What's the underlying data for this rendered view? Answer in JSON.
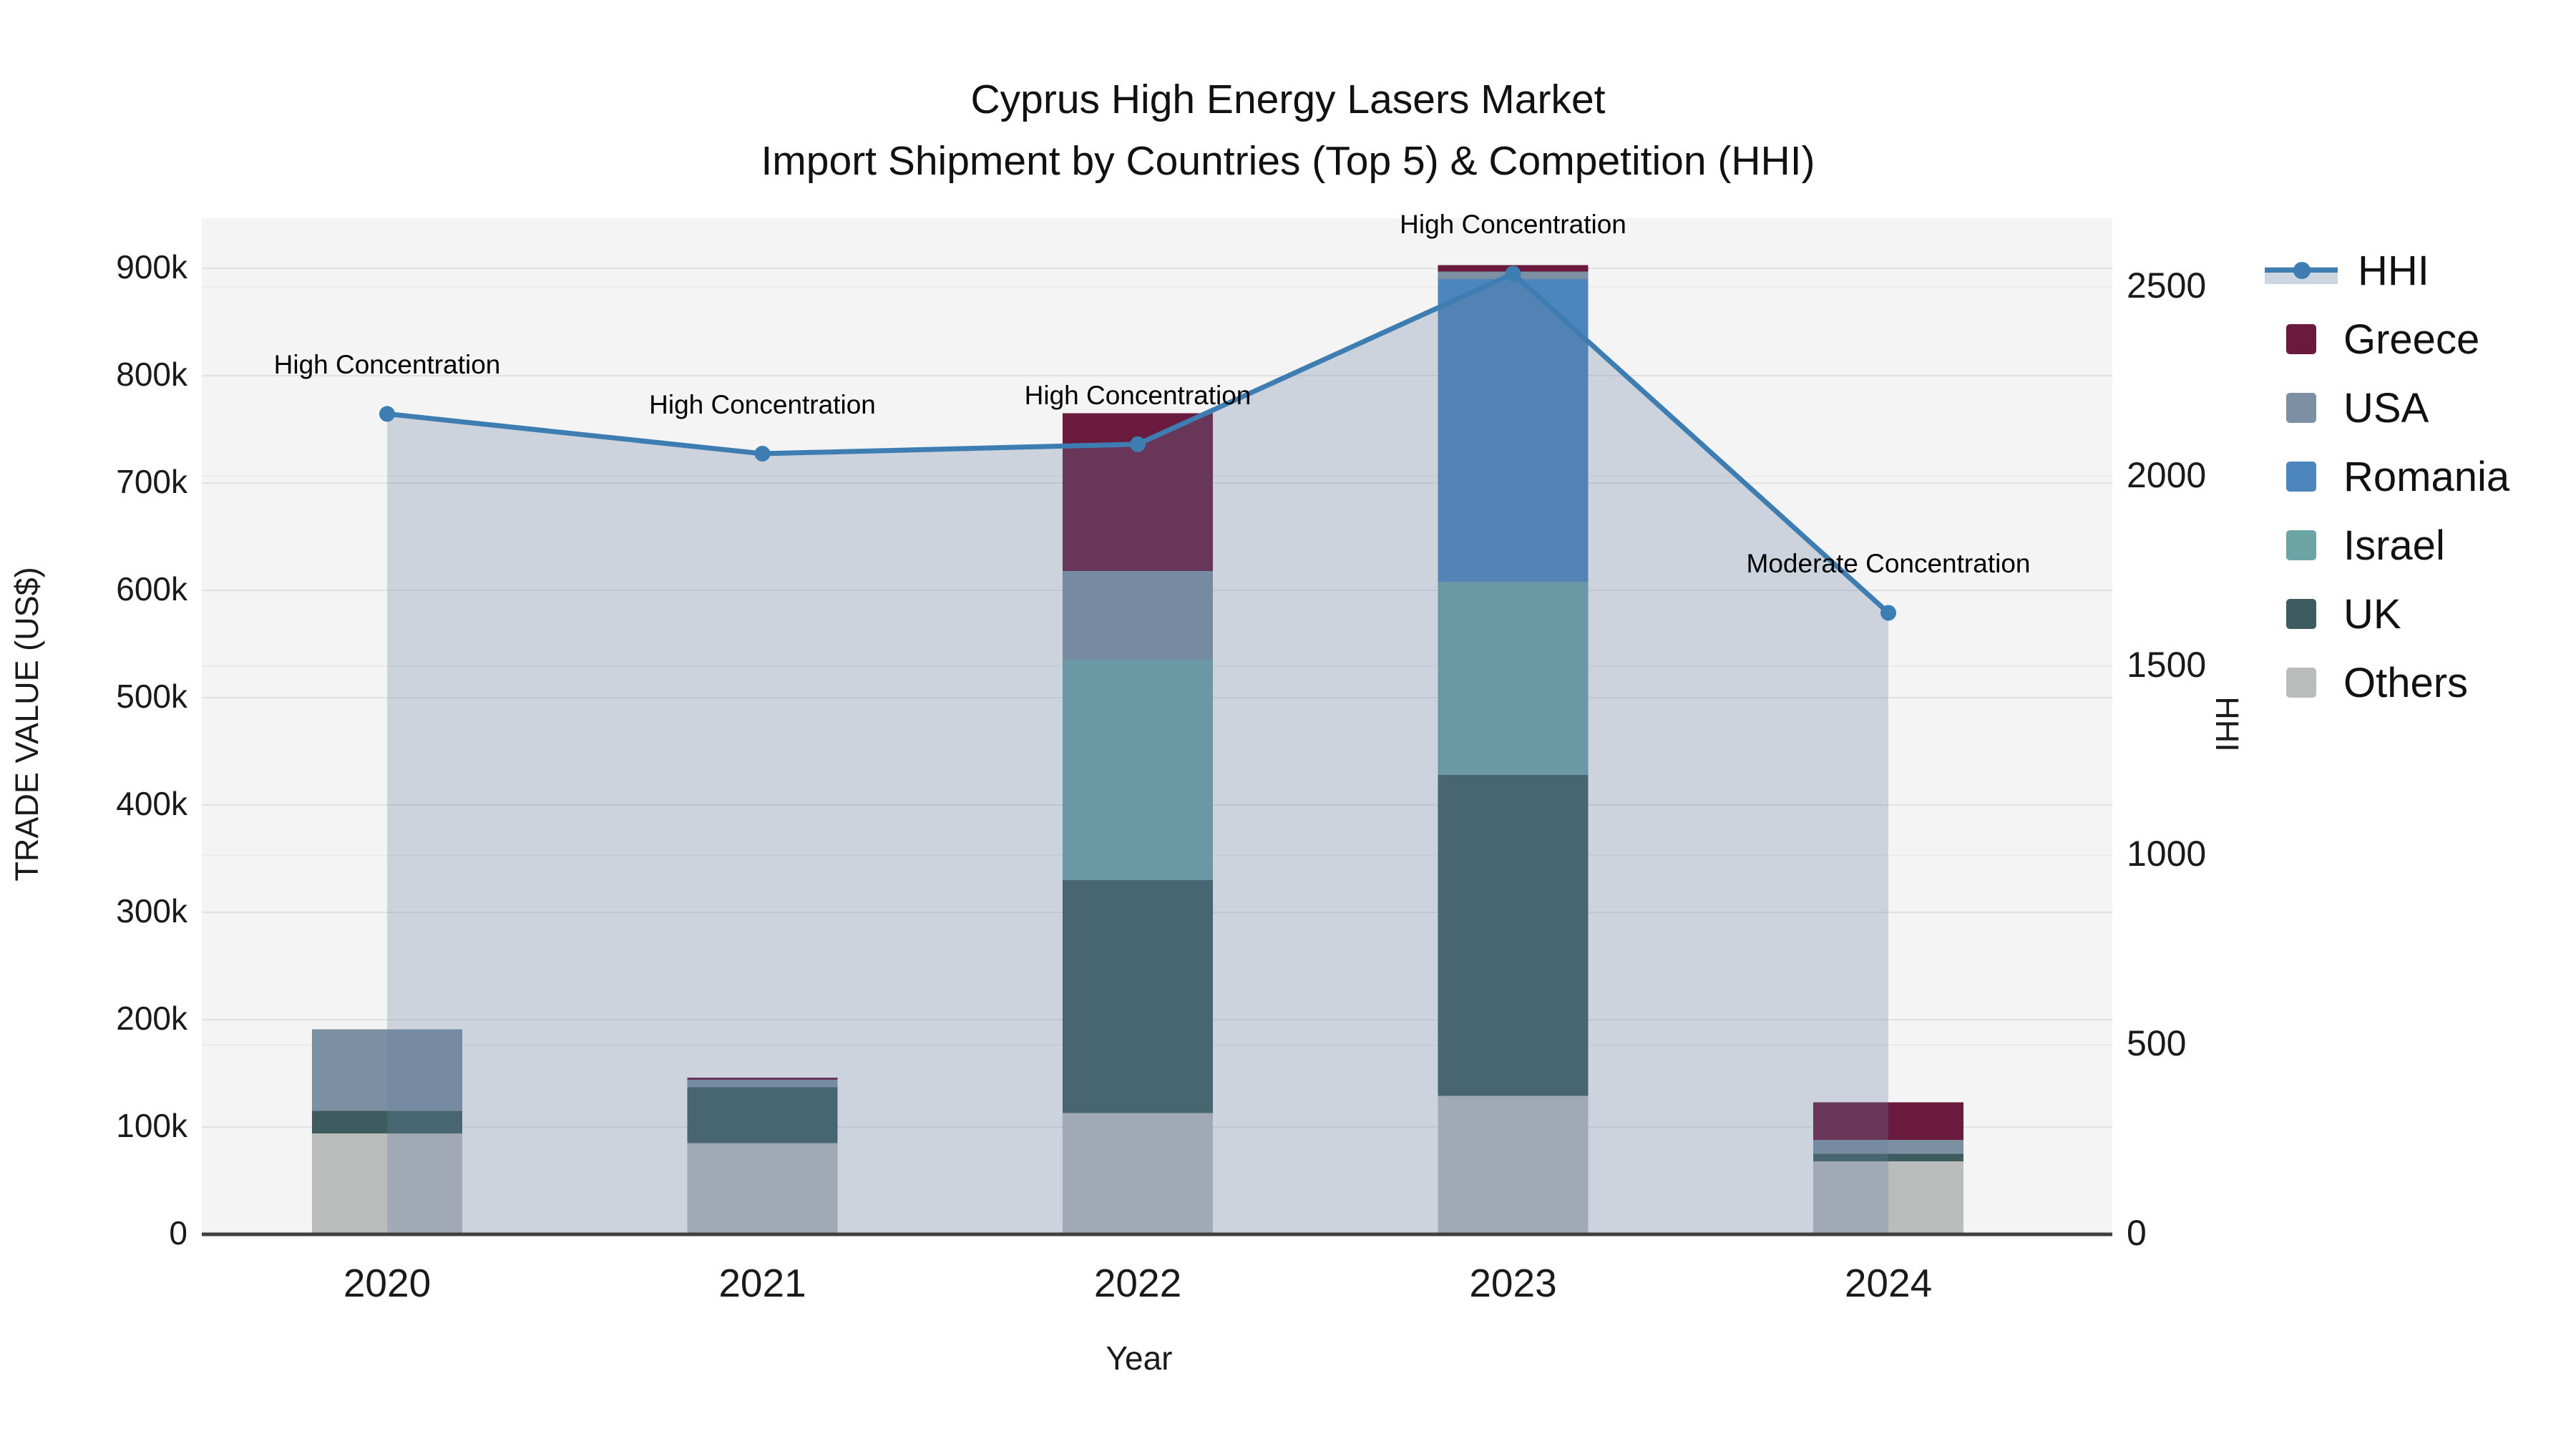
{
  "title": {
    "line1": "Cyprus High Energy Lasers Market",
    "line2": "Import Shipment by Countries (Top 5) & Competition (HHI)"
  },
  "axes": {
    "x": {
      "label": "Year",
      "ticks": [
        "2020",
        "2021",
        "2022",
        "2023",
        "2024"
      ]
    },
    "y_left": {
      "label": "TRADE VALUE (US$)",
      "ticks": [
        "0",
        "100k",
        "200k",
        "300k",
        "400k",
        "500k",
        "600k",
        "700k",
        "800k",
        "900k"
      ]
    },
    "y_right": {
      "label": "HHI",
      "ticks": [
        "0",
        "500",
        "1000",
        "1500",
        "2000",
        "2500"
      ]
    }
  },
  "chart_data": {
    "type": "bar",
    "subtype": "stacked-bars-with-line",
    "categories": [
      2020,
      2021,
      2022,
      2023,
      2024
    ],
    "bar_unit": "US$ thousands",
    "stack_order_bottom_to_top": [
      "Others",
      "UK",
      "Israel",
      "Romania",
      "USA",
      "Greece"
    ],
    "series": [
      {
        "name": "Others",
        "color": "#b9bcbb",
        "values": [
          94,
          85,
          113,
          129,
          68
        ]
      },
      {
        "name": "UK",
        "color": "#3e5c60",
        "values": [
          21,
          52,
          217,
          299,
          7
        ]
      },
      {
        "name": "Israel",
        "color": "#6ca3a5",
        "values": [
          0,
          0,
          205,
          180,
          0
        ]
      },
      {
        "name": "Romania",
        "color": "#4c86bc",
        "values": [
          0,
          0,
          0,
          282,
          0
        ]
      },
      {
        "name": "USA",
        "color": "#7d8fa3",
        "values": [
          76,
          7,
          83,
          7,
          13
        ]
      },
      {
        "name": "Greece",
        "color": "#6a1b3d",
        "values": [
          0,
          2,
          147,
          6,
          35
        ]
      }
    ],
    "line_series": {
      "name": "HHI",
      "values": [
        2165,
        2060,
        2085,
        2535,
        1640
      ],
      "color": "#3e7db2",
      "fill_color": "rgba(101,126,160,0.28)",
      "axis": "right"
    },
    "annotations": [
      {
        "x": 2020,
        "text": "High Concentration"
      },
      {
        "x": 2021,
        "text": "High Concentration"
      },
      {
        "x": 2022,
        "text": "High Concentration"
      },
      {
        "x": 2023,
        "text": "High Concentration"
      },
      {
        "x": 2024,
        "text": "Moderate Concentration"
      }
    ],
    "ylim_left_thousands": [
      0,
      946
    ],
    "ylim_right": [
      0,
      2680
    ],
    "grid": true,
    "legend_position": "right",
    "plot_bg": "#f4f4f4",
    "grid_color_left": "#e2e2e2",
    "grid_color_right": "#eaeaea",
    "axis_line_color": "#3f3f3f"
  },
  "legend": {
    "items": [
      {
        "label": "HHI",
        "type": "line"
      },
      {
        "label": "Greece",
        "type": "swatch",
        "color": "#6a1b3d"
      },
      {
        "label": "USA",
        "type": "swatch",
        "color": "#7d8fa3"
      },
      {
        "label": "Romania",
        "type": "swatch",
        "color": "#4c86bc"
      },
      {
        "label": "Israel",
        "type": "swatch",
        "color": "#6ca3a5"
      },
      {
        "label": "UK",
        "type": "swatch",
        "color": "#3e5c60"
      },
      {
        "label": "Others",
        "type": "swatch",
        "color": "#b9bcbb"
      }
    ]
  }
}
